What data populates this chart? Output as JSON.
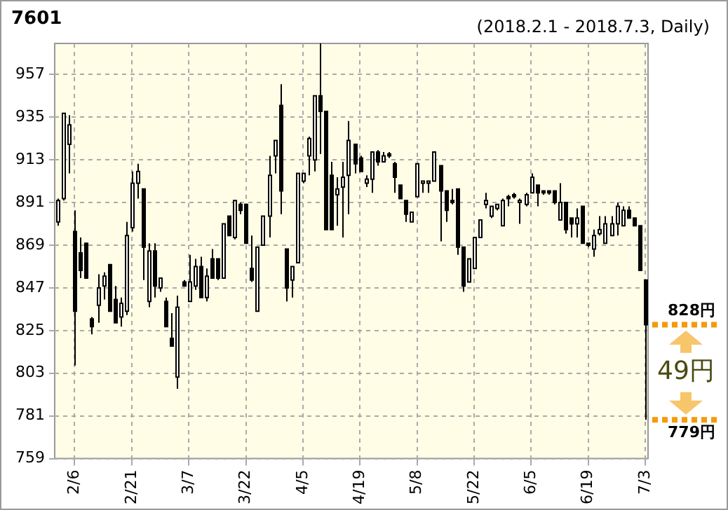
{
  "chart_data": {
    "type": "candlestick",
    "title": "7601",
    "subtitle": "(2018.2.1 - 2018.7.3, Daily)",
    "categories": [
      null,
      null,
      null,
      "2/6",
      null,
      null,
      null,
      null,
      null,
      null,
      null,
      null,
      null,
      "2/21",
      null,
      null,
      null,
      null,
      null,
      null,
      null,
      null,
      null,
      "3/7",
      null,
      null,
      null,
      null,
      null,
      null,
      null,
      null,
      null,
      "3/22",
      null,
      null,
      null,
      null,
      null,
      null,
      null,
      null,
      null,
      "4/5",
      null,
      null,
      null,
      null,
      null,
      null,
      null,
      null,
      null,
      "4/19",
      null,
      null,
      null,
      null,
      null,
      null,
      null,
      null,
      null,
      "5/8",
      null,
      null,
      null,
      null,
      null,
      null,
      null,
      null,
      null,
      "5/22",
      null,
      null,
      null,
      null,
      null,
      null,
      null,
      null,
      null,
      "6/5",
      null,
      null,
      null,
      null,
      null,
      null,
      null,
      null,
      null,
      "6/19",
      null,
      null,
      null,
      null,
      null,
      null,
      null,
      null,
      null,
      "7/3"
    ],
    "ohlc": [
      [
        881,
        893,
        879,
        892
      ],
      [
        893,
        937,
        892,
        937
      ],
      [
        921,
        936,
        906,
        931
      ],
      [
        876,
        887,
        807,
        835
      ],
      [
        865,
        873,
        852,
        856
      ],
      [
        870,
        870,
        852,
        852
      ],
      [
        831,
        832,
        823,
        827
      ],
      [
        838,
        854,
        829,
        847
      ],
      [
        848,
        855,
        841,
        853
      ],
      [
        859,
        859,
        835,
        835
      ],
      [
        841,
        848,
        829,
        829
      ],
      [
        832,
        842,
        827,
        839
      ],
      [
        835,
        881,
        833,
        874
      ],
      [
        878,
        907,
        876,
        901
      ],
      [
        901,
        911,
        893,
        907
      ],
      [
        898,
        898,
        851,
        868
      ],
      [
        840,
        870,
        837,
        866
      ],
      [
        866,
        870,
        842,
        848
      ],
      [
        847,
        852,
        845,
        852
      ],
      [
        840,
        842,
        827,
        827
      ],
      [
        821,
        834,
        817,
        817
      ],
      [
        801,
        843,
        795,
        837
      ],
      [
        850,
        851,
        848,
        848
      ],
      [
        840,
        864,
        840,
        850
      ],
      [
        848,
        862,
        846,
        858
      ],
      [
        858,
        863,
        842,
        842
      ],
      [
        842,
        857,
        840,
        853
      ],
      [
        862,
        867,
        852,
        852
      ],
      [
        862,
        862,
        851,
        852
      ],
      [
        852,
        880,
        852,
        880
      ],
      [
        884,
        884,
        874,
        874
      ],
      [
        873,
        892,
        872,
        892
      ],
      [
        890,
        891,
        885,
        887
      ],
      [
        890,
        890,
        870,
        870
      ],
      [
        857,
        874,
        850,
        851
      ],
      [
        835,
        868,
        835,
        868
      ],
      [
        869,
        884,
        869,
        884
      ],
      [
        884,
        915,
        873,
        905
      ],
      [
        915,
        923,
        906,
        923
      ],
      [
        941,
        952,
        885,
        897
      ],
      [
        867,
        867,
        840,
        847
      ],
      [
        851,
        858,
        842,
        858
      ],
      [
        860,
        906,
        860,
        906
      ],
      [
        902,
        906,
        901,
        906
      ],
      [
        915,
        925,
        905,
        924
      ],
      [
        913,
        946,
        907,
        946
      ],
      [
        946,
        973,
        916,
        938
      ],
      [
        938,
        938,
        877,
        877
      ],
      [
        905,
        912,
        877,
        877
      ],
      [
        895,
        904,
        879,
        898
      ],
      [
        899,
        912,
        873,
        904
      ],
      [
        905,
        933,
        885,
        923
      ],
      [
        921,
        921,
        906,
        911
      ],
      [
        914,
        915,
        907,
        907
      ],
      [
        901,
        905,
        899,
        903
      ],
      [
        903,
        917,
        896,
        917
      ],
      [
        917,
        918,
        910,
        912
      ],
      [
        912,
        917,
        912,
        915
      ],
      [
        916,
        917,
        914,
        915
      ],
      [
        911,
        912,
        896,
        904
      ],
      [
        900,
        900,
        893,
        893
      ],
      [
        892,
        892,
        881,
        885
      ],
      [
        881,
        886,
        881,
        886
      ],
      [
        894,
        911,
        894,
        911
      ],
      [
        901,
        902,
        896,
        902
      ],
      [
        901,
        902,
        896,
        902
      ],
      [
        902,
        917,
        902,
        917
      ],
      [
        910,
        910,
        871,
        897
      ],
      [
        897,
        897,
        881,
        887
      ],
      [
        892,
        898,
        890,
        891
      ],
      [
        898,
        898,
        864,
        868
      ],
      [
        868,
        868,
        845,
        848
      ],
      [
        850,
        862,
        850,
        862
      ],
      [
        857,
        873,
        857,
        873
      ],
      [
        873,
        882,
        873,
        882
      ],
      [
        890,
        896,
        888,
        892
      ],
      [
        884,
        889,
        883,
        889
      ],
      [
        888,
        890,
        887,
        890
      ],
      [
        879,
        893,
        879,
        892
      ],
      [
        894,
        895,
        889,
        893
      ],
      [
        895,
        896,
        893,
        894
      ],
      [
        891,
        893,
        880,
        892
      ],
      [
        890,
        896,
        889,
        895
      ],
      [
        896,
        906,
        896,
        904
      ],
      [
        900,
        900,
        889,
        896
      ],
      [
        897,
        897,
        895,
        896
      ],
      [
        897,
        897,
        895,
        896
      ],
      [
        897,
        897,
        890,
        891
      ],
      [
        882,
        901,
        882,
        891
      ],
      [
        891,
        891,
        875,
        877
      ],
      [
        883,
        883,
        873,
        880
      ],
      [
        880,
        888,
        873,
        883
      ],
      [
        889,
        889,
        870,
        870
      ],
      [
        870,
        870,
        868,
        869
      ],
      [
        867,
        877,
        863,
        874
      ],
      [
        875,
        884,
        874,
        877
      ],
      [
        870,
        884,
        870,
        880
      ],
      [
        874,
        884,
        874,
        880
      ],
      [
        880,
        891,
        874,
        889
      ],
      [
        879,
        889,
        879,
        887
      ],
      [
        887,
        889,
        883,
        883
      ],
      [
        883,
        883,
        879,
        879
      ],
      [
        879,
        879,
        856,
        856
      ],
      [
        851,
        851,
        779,
        828
      ]
    ],
    "ylim": [
      759,
      973
    ],
    "yticks": [
      759,
      781,
      803,
      825,
      847,
      869,
      891,
      913,
      935,
      957
    ],
    "grid": true,
    "legend": false,
    "ref_lines": [
      {
        "axis": "y",
        "value": 828,
        "label": "828円",
        "color": "#f59a0a",
        "line_style": "dotted"
      },
      {
        "axis": "y",
        "value": 779,
        "label": "779円",
        "color": "#f59a0a",
        "line_style": "dotted"
      }
    ],
    "annotations": [
      "49円"
    ]
  }
}
